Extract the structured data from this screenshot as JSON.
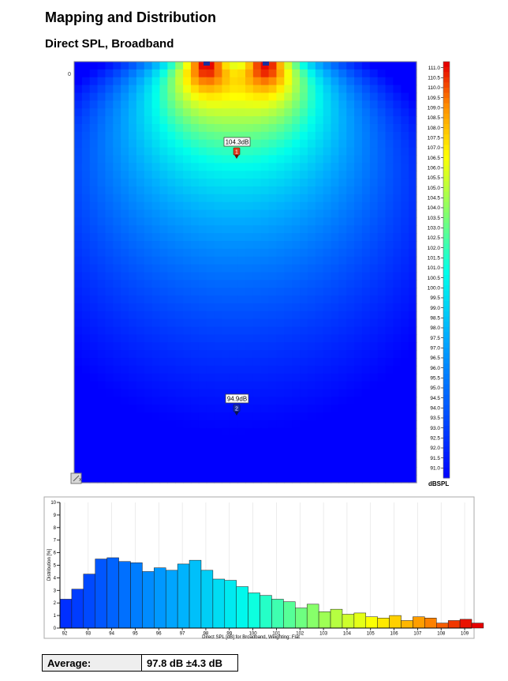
{
  "page": {
    "title": "Mapping and Distribution",
    "subtitle": "Direct SPL, Broadband"
  },
  "map": {
    "corner_label": "0",
    "unit_label": "dBSPL",
    "scale_min": 90.5,
    "scale_max": 111.3,
    "scale_ticks": [
      "111.0",
      "110.5",
      "110.0",
      "109.5",
      "109.0",
      "108.5",
      "108.0",
      "107.5",
      "107.0",
      "106.5",
      "106.0",
      "105.5",
      "105.0",
      "104.5",
      "104.0",
      "103.5",
      "103.0",
      "102.5",
      "102.0",
      "101.5",
      "101.0",
      "100.5",
      "100.0",
      "99.5",
      "99.0",
      "98.5",
      "98.0",
      "97.5",
      "97.0",
      "96.5",
      "96.0",
      "95.5",
      "95.0",
      "94.5",
      "94.0",
      "93.5",
      "93.0",
      "92.5",
      "92.0",
      "91.5",
      "91.0"
    ],
    "markers": [
      {
        "id": "1",
        "label": "104.3dB",
        "color": "#e03a1e"
      },
      {
        "id": "2",
        "label": "94.9dB",
        "color": "#1c2ea8"
      }
    ]
  },
  "chart_data": {
    "type": "bar",
    "xlabel": "Direct SPL [dB] for Broadband, Weighting: Flat",
    "ylabel": "Distribution [%]",
    "xlim": [
      91.8,
      109.3
    ],
    "ylim": [
      0,
      10
    ],
    "x_ticks": [
      "92",
      "93",
      "94",
      "95",
      "96",
      "97",
      "98",
      "99",
      "100",
      "101",
      "102",
      "103",
      "104",
      "105",
      "106",
      "107",
      "108",
      "109"
    ],
    "y_ticks": [
      "0",
      "1",
      "2",
      "3",
      "4",
      "5",
      "6",
      "7",
      "8",
      "9",
      "10"
    ],
    "bin_start": 91.8,
    "bin_width": 0.5,
    "values": [
      2.3,
      3.1,
      4.3,
      5.5,
      5.6,
      5.3,
      5.2,
      4.5,
      4.8,
      4.6,
      5.1,
      5.4,
      4.6,
      3.9,
      3.8,
      3.3,
      2.8,
      2.6,
      2.3,
      2.1,
      1.6,
      1.9,
      1.3,
      1.5,
      1.1,
      1.2,
      0.9,
      0.8,
      1.0,
      0.6,
      0.9,
      0.8,
      0.4,
      0.6,
      0.7,
      0.4
    ]
  },
  "summary": {
    "average_label": "Average:",
    "average_value": "97.8 dB ±4.3 dB"
  }
}
